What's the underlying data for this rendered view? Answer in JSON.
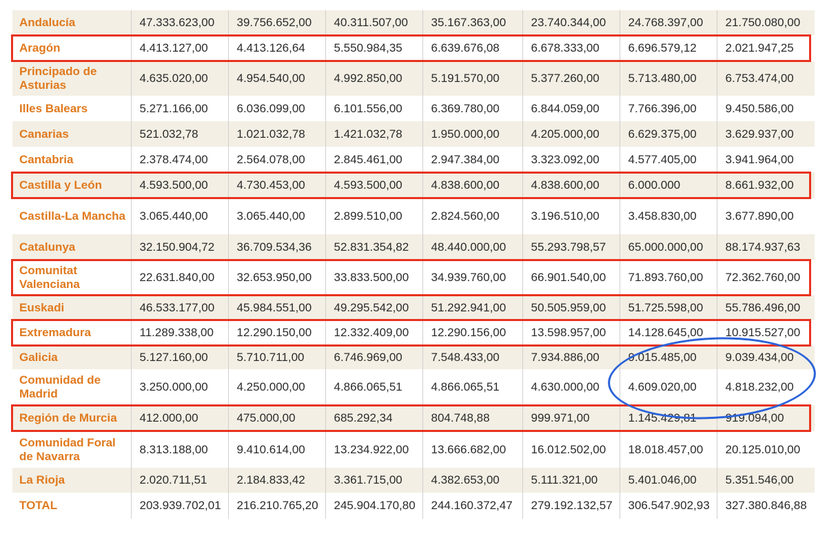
{
  "table": {
    "rows": [
      {
        "region": "Andalucía",
        "values": [
          "47.333.623,00",
          "39.756.652,00",
          "40.311.507,00",
          "35.167.363,00",
          "23.740.344,00",
          "24.768.397,00",
          "21.750.080,00"
        ],
        "highlighted": false
      },
      {
        "region": "Aragón",
        "values": [
          "4.413.127,00",
          "4.413.126,64",
          "5.550.984,35",
          "6.639.676,08",
          "6.678.333,00",
          "6.696.579,12",
          "2.021.947,25"
        ],
        "highlighted": true
      },
      {
        "region": "Principado de Asturias",
        "values": [
          "4.635.020,00",
          "4.954.540,00",
          "4.992.850,00",
          "5.191.570,00",
          "5.377.260,00",
          "5.713.480,00",
          "6.753.474,00"
        ],
        "highlighted": false
      },
      {
        "region": "Illes Balears",
        "values": [
          "5.271.166,00",
          "6.036.099,00",
          "6.101.556,00",
          "6.369.780,00",
          "6.844.059,00",
          "7.766.396,00",
          "9.450.586,00"
        ],
        "highlighted": false
      },
      {
        "region": "Canarias",
        "values": [
          "521.032,78",
          "1.021.032,78",
          "1.421.032,78",
          "1.950.000,00",
          "4.205.000,00",
          "6.629.375,00",
          "3.629.937,00"
        ],
        "highlighted": false
      },
      {
        "region": "Cantabria",
        "values": [
          "2.378.474,00",
          "2.564.078,00",
          "2.845.461,00",
          "2.947.384,00",
          "3.323.092,00",
          "4.577.405,00",
          "3.941.964,00"
        ],
        "highlighted": false
      },
      {
        "region": "Castilla y León",
        "values": [
          "4.593.500,00",
          "4.730.453,00",
          "4.593.500,00",
          "4.838.600,00",
          "4.838.600,00",
          "6.000.000",
          "8.661.932,00"
        ],
        "highlighted": true
      },
      {
        "region": "Castilla-La Mancha",
        "values": [
          "3.065.440,00",
          "3.065.440,00",
          "2.899.510,00",
          "2.824.560,00",
          "3.196.510,00",
          "3.458.830,00",
          "3.677.890,00"
        ],
        "highlighted": false
      },
      {
        "region": "Catalunya",
        "values": [
          "32.150.904,72",
          "36.709.534,36",
          "52.831.354,82",
          "48.440.000,00",
          "55.293.798,57",
          "65.000.000,00",
          "88.174.937,63"
        ],
        "highlighted": false
      },
      {
        "region": "Comunitat Valenciana",
        "values": [
          "22.631.840,00",
          "32.653.950,00",
          "33.833.500,00",
          "34.939.760,00",
          "66.901.540,00",
          "71.893.760,00",
          "72.362.760,00"
        ],
        "highlighted": true
      },
      {
        "region": "Euskadi",
        "values": [
          "46.533.177,00",
          "45.984.551,00",
          "49.295.542,00",
          "51.292.941,00",
          "50.505.959,00",
          "51.725.598,00",
          "55.786.496,00"
        ],
        "highlighted": false
      },
      {
        "region": "Extremadura",
        "values": [
          "11.289.338,00",
          "12.290.150,00",
          "12.332.409,00",
          "12.290.156,00",
          "13.598.957,00",
          "14.128.645,00",
          "10.915.527,00"
        ],
        "highlighted": true
      },
      {
        "region": "Galicia",
        "values": [
          "5.127.160,00",
          "5.710.711,00",
          "6.746.969,00",
          "7.548.433,00",
          "7.934.886,00",
          "9.015.485,00",
          "9.039.434,00"
        ],
        "highlighted": false
      },
      {
        "region": "Comunidad de Madrid",
        "values": [
          "3.250.000,00",
          "4.250.000,00",
          "4.866.065,51",
          "4.866.065,51",
          "4.630.000,00",
          "4.609.020,00",
          "4.818.232,00"
        ],
        "highlighted": false
      },
      {
        "region": "Región de Murcia",
        "values": [
          "412.000,00",
          "475.000,00",
          "685.292,34",
          "804.748,88",
          "999.971,00",
          "1.145.429,81",
          "919.094,00"
        ],
        "highlighted": true
      },
      {
        "region": "Comunidad Foral de Navarra",
        "values": [
          "8.313.188,00",
          "9.410.614,00",
          "13.234.922,00",
          "13.666.682,00",
          "16.012.502,00",
          "18.018.457,00",
          "20.125.010,00"
        ],
        "highlighted": false
      },
      {
        "region": "La Rioja",
        "values": [
          "2.020.711,51",
          "2.184.833,42",
          "3.361.715,00",
          "4.382.653,00",
          "5.111.321,00",
          "5.401.046,00",
          "5.351.546,00"
        ],
        "highlighted": false
      },
      {
        "region": "TOTAL",
        "values": [
          "203.939.702,01",
          "216.210.765,20",
          "245.904.170,80",
          "244.160.372,47",
          "279.192.132,57",
          "306.547.902,93",
          "327.380.846,88"
        ],
        "highlighted": false
      }
    ]
  },
  "annotations": {
    "box_color": "#e8321e",
    "circle_color": "#2b63d9"
  },
  "colors": {
    "region_text": "#e07a1f",
    "stripe": "#f3efe4"
  }
}
